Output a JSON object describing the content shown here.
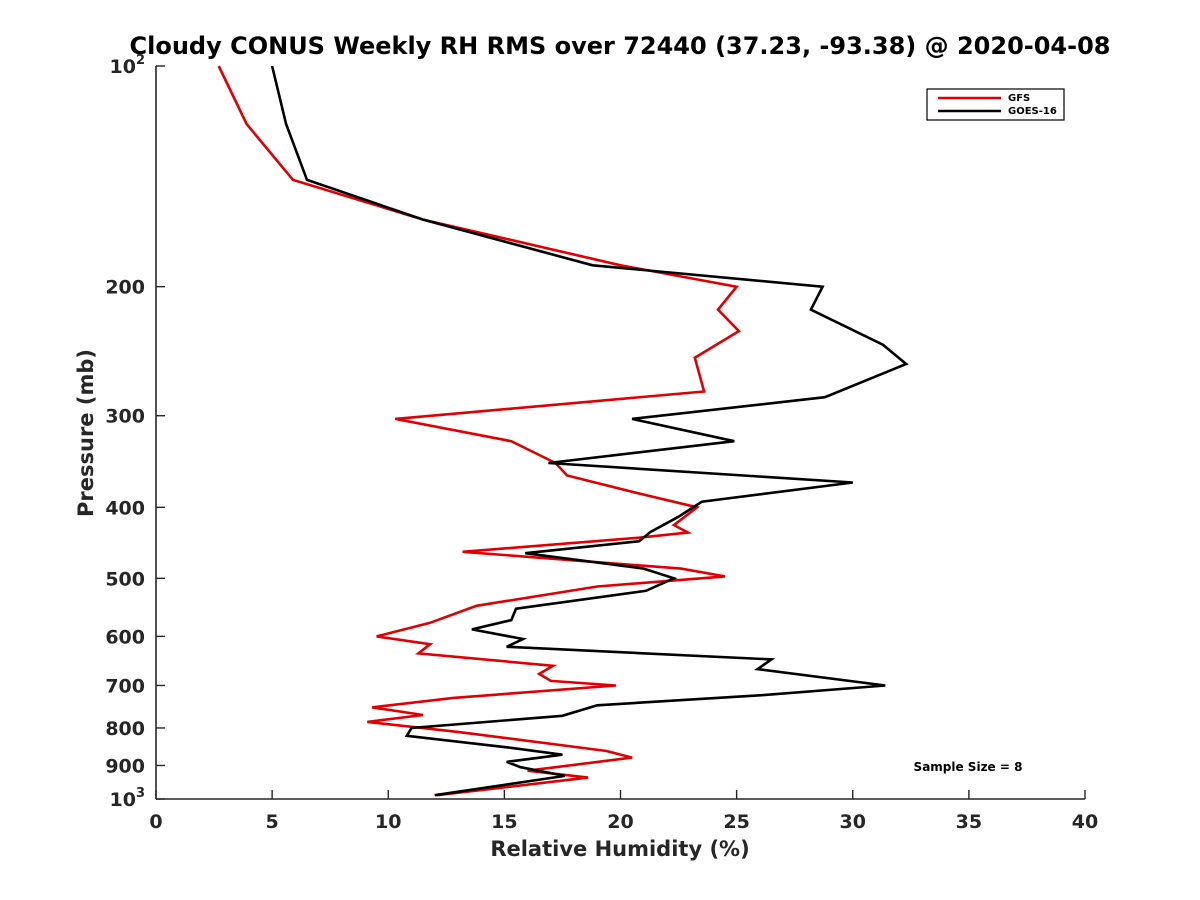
{
  "chart_data": {
    "type": "line",
    "title": "Cloudy CONUS Weekly RH RMS over 72440 (37.23, -93.38) @ 2020-04-08",
    "xlabel": "Relative Humidity (%)",
    "ylabel": "Pressure (mb)",
    "xlim": [
      0,
      40
    ],
    "ylim": [
      100,
      1000
    ],
    "y_scale": "log",
    "y_reversed": true,
    "grid": false,
    "legend_position": "top-right",
    "x_ticks": [
      "0",
      "5",
      "10",
      "15",
      "20",
      "25",
      "30",
      "35",
      "40"
    ],
    "y_ticks": [
      {
        "value": 100,
        "base": "10",
        "exp": "2"
      },
      {
        "value": 200,
        "label": "200"
      },
      {
        "value": 300,
        "label": "300"
      },
      {
        "value": 400,
        "label": "400"
      },
      {
        "value": 500,
        "label": "500"
      },
      {
        "value": 600,
        "label": "600"
      },
      {
        "value": 700,
        "label": "700"
      },
      {
        "value": 800,
        "label": "800"
      },
      {
        "value": 900,
        "label": "900"
      },
      {
        "value": 1000,
        "base": "10",
        "exp": "3"
      }
    ],
    "annotation": "Sample Size = 8",
    "series": [
      {
        "name": "GFS",
        "color": "#e00000",
        "points": [
          [
            2.7,
            100
          ],
          [
            3.9,
            120
          ],
          [
            5.9,
            143
          ],
          [
            11.5,
            162
          ],
          [
            20.0,
            187
          ],
          [
            25.0,
            200
          ],
          [
            24.2,
            215
          ],
          [
            25.1,
            230
          ],
          [
            23.2,
            250
          ],
          [
            23.6,
            278
          ],
          [
            10.3,
            303
          ],
          [
            15.3,
            325
          ],
          [
            17.2,
            348
          ],
          [
            17.7,
            362
          ],
          [
            20.8,
            383
          ],
          [
            23.3,
            400
          ],
          [
            22.3,
            423
          ],
          [
            22.9,
            433
          ],
          [
            20.8,
            440
          ],
          [
            13.2,
            460
          ],
          [
            22.6,
            485
          ],
          [
            24.5,
            497
          ],
          [
            19.0,
            513
          ],
          [
            13.8,
            545
          ],
          [
            11.8,
            575
          ],
          [
            9.5,
            600
          ],
          [
            11.8,
            615
          ],
          [
            11.3,
            633
          ],
          [
            17.1,
            658
          ],
          [
            16.5,
            675
          ],
          [
            17.0,
            690
          ],
          [
            19.8,
            700
          ],
          [
            12.8,
            728
          ],
          [
            9.3,
            750
          ],
          [
            11.5,
            768
          ],
          [
            9.1,
            785
          ],
          [
            13.0,
            810
          ],
          [
            19.4,
            860
          ],
          [
            20.5,
            878
          ],
          [
            16.0,
            915
          ],
          [
            18.6,
            935
          ],
          [
            12.1,
            988
          ]
        ]
      },
      {
        "name": "GOES-16",
        "color": "#000000",
        "points": [
          [
            5.0,
            100
          ],
          [
            5.6,
            120
          ],
          [
            6.5,
            143
          ],
          [
            11.5,
            162
          ],
          [
            18.8,
            187
          ],
          [
            28.7,
            200
          ],
          [
            28.2,
            215
          ],
          [
            31.3,
            240
          ],
          [
            32.3,
            255
          ],
          [
            28.8,
            283
          ],
          [
            20.5,
            303
          ],
          [
            24.9,
            325
          ],
          [
            16.9,
            348
          ],
          [
            30.0,
            370
          ],
          [
            23.5,
            393
          ],
          [
            22.5,
            412
          ],
          [
            21.3,
            432
          ],
          [
            20.8,
            445
          ],
          [
            15.9,
            462
          ],
          [
            21.0,
            485
          ],
          [
            22.3,
            500
          ],
          [
            21.1,
            520
          ],
          [
            15.5,
            550
          ],
          [
            15.3,
            570
          ],
          [
            13.6,
            587
          ],
          [
            15.8,
            605
          ],
          [
            15.1,
            620
          ],
          [
            26.5,
            645
          ],
          [
            25.9,
            665
          ],
          [
            31.4,
            700
          ],
          [
            26.0,
            722
          ],
          [
            19.0,
            745
          ],
          [
            17.5,
            770
          ],
          [
            11.0,
            800
          ],
          [
            10.8,
            820
          ],
          [
            15.1,
            850
          ],
          [
            17.5,
            870
          ],
          [
            15.1,
            890
          ],
          [
            15.7,
            905
          ],
          [
            17.6,
            930
          ],
          [
            12.0,
            988
          ]
        ]
      }
    ]
  }
}
